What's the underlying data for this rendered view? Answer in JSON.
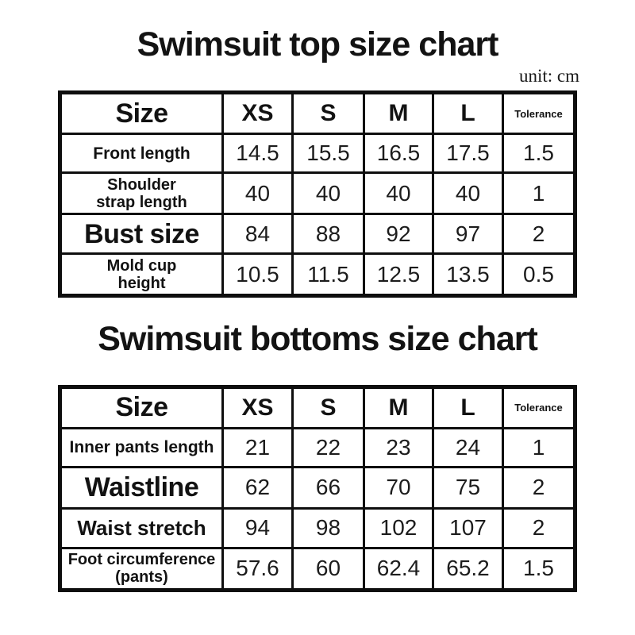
{
  "top_chart": {
    "title": "Swimsuit top size chart",
    "unit_label": "unit: cm",
    "header": {
      "size_label": "Size",
      "columns": [
        "XS",
        "S",
        "M",
        "L",
        "Tolerance"
      ]
    },
    "rows": [
      {
        "label": "Front length",
        "values": [
          "14.5",
          "15.5",
          "16.5",
          "17.5",
          "1.5"
        ]
      },
      {
        "label": "Shoulder\nstrap length",
        "values": [
          "40",
          "40",
          "40",
          "40",
          "1"
        ]
      },
      {
        "label": "Bust size",
        "values": [
          "84",
          "88",
          "92",
          "97",
          "2"
        ]
      },
      {
        "label": "Mold cup\nheight",
        "values": [
          "10.5",
          "11.5",
          "12.5",
          "13.5",
          "0.5"
        ]
      }
    ]
  },
  "bottom_chart": {
    "title": "Swimsuit bottoms size chart",
    "header": {
      "size_label": "Size",
      "columns": [
        "XS",
        "S",
        "M",
        "L",
        "Tolerance"
      ]
    },
    "rows": [
      {
        "label": "Inner pants length",
        "values": [
          "21",
          "22",
          "23",
          "24",
          "1"
        ]
      },
      {
        "label": "Waistline",
        "values": [
          "62",
          "66",
          "70",
          "75",
          "2"
        ]
      },
      {
        "label": "Waist stretch",
        "values": [
          "94",
          "98",
          "102",
          "107",
          "2"
        ]
      },
      {
        "label": "Foot circumference\n(pants)",
        "values": [
          "57.6",
          "60",
          "62.4",
          "65.2",
          "1.5"
        ]
      }
    ]
  }
}
